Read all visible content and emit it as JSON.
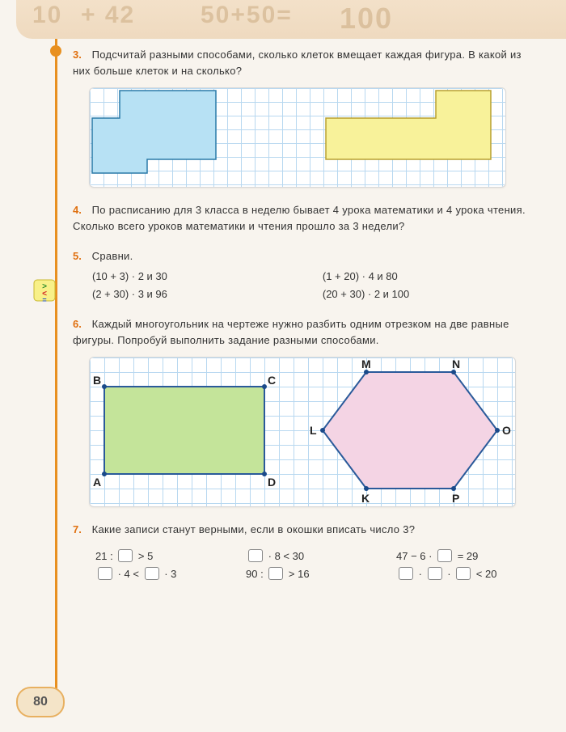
{
  "page_number": "80",
  "header_ghost": {
    "a": "10",
    "b": "+ 42",
    "c": "50+50=",
    "d": "100"
  },
  "tasks": {
    "t3": {
      "num": "3.",
      "text": "Подсчитай разными способами, сколько клеток вмещает каждая фигура. В какой из них больше клеток и на сколько?",
      "panel": {
        "cell": 17,
        "cols": 30,
        "rows": 7,
        "shape_a": {
          "fill": "#b7e1f4",
          "stroke": "#2a7aa8",
          "points": [
            [
              2,
              0
            ],
            [
              9,
              0
            ],
            [
              9,
              5
            ],
            [
              4,
              5
            ],
            [
              4,
              6
            ],
            [
              0,
              6
            ],
            [
              0,
              2
            ],
            [
              2,
              2
            ]
          ]
        },
        "shape_b": {
          "fill": "#f8f29a",
          "stroke": "#b8a030",
          "points": [
            [
              25,
              0
            ],
            [
              29,
              0
            ],
            [
              29,
              5
            ],
            [
              17,
              5
            ],
            [
              17,
              2
            ],
            [
              25,
              2
            ]
          ]
        }
      }
    },
    "t4": {
      "num": "4.",
      "text": "По расписанию для 3 класса в неделю бывает 4 урока математики и 4 урока чтения. Сколько всего уроков математики и чтения прошло за 3 недели?"
    },
    "t5": {
      "num": "5.",
      "title": "Сравни.",
      "left": [
        "(10 + 3) · 2  и  30",
        "(2 + 30) · 3  и  96"
      ],
      "right": [
        "(1 + 20) · 4  и  80",
        "(20 + 30) · 2  и  100"
      ]
    },
    "t6": {
      "num": "6.",
      "text": "Каждый многоугольник на чертеже нужно разбить одним отрезком на две равные фигуры. Попробуй выполнить задание разными способами.",
      "panel": {
        "cell": 18,
        "cols": 29,
        "rows": 10,
        "rect": {
          "fill": "#c4e49a",
          "stroke": "#2a5a9a",
          "A": [
            1,
            8
          ],
          "B": [
            1,
            2
          ],
          "C": [
            12,
            2
          ],
          "D": [
            12,
            8
          ],
          "labels": {
            "A": "A",
            "B": "B",
            "C": "C",
            "D": "D"
          }
        },
        "hex": {
          "fill": "#f4d4e4",
          "stroke": "#2a5a9a",
          "K": [
            19,
            9
          ],
          "L": [
            16,
            5
          ],
          "M": [
            19,
            1
          ],
          "N": [
            25,
            1
          ],
          "O": [
            28,
            5
          ],
          "P": [
            25,
            9
          ],
          "labels": {
            "K": "K",
            "L": "L",
            "M": "M",
            "N": "N",
            "O": "O",
            "P": "P"
          }
        }
      }
    },
    "t7": {
      "num": "7.",
      "text": "Какие записи станут верными, если в окошки вписать число 3?",
      "col1": {
        "a_pre": "21 : ",
        "a_post": " > 5",
        "b_pre": "",
        "b_mid": " · 4 < ",
        "b_post": " · 3"
      },
      "col2": {
        "a_pre": "",
        "a_post": " · 8 < 30",
        "b_pre": "90 : ",
        "b_post": " > 16"
      },
      "col3": {
        "a_pre": "47 − 6 · ",
        "a_post": " = 29",
        "b_pre": "",
        "b_mid": " · ",
        "b_mid2": " · ",
        "b_post": " < 20"
      }
    }
  }
}
